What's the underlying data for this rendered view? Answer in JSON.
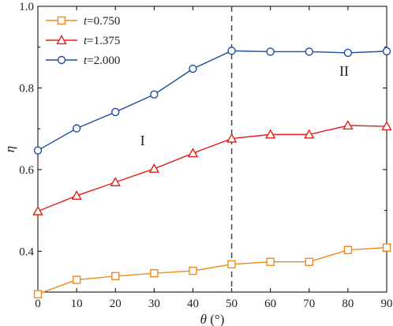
{
  "chart_data": {
    "type": "line",
    "xlabel_symbol": "θ",
    "xlabel_unit": " (°)",
    "ylabel": "η",
    "xlim": [
      0,
      90
    ],
    "ylim": [
      0.3,
      1.0
    ],
    "x_ticks": [
      0,
      10,
      20,
      30,
      40,
      50,
      60,
      70,
      80,
      90
    ],
    "y_ticks": [
      "0.4",
      "0.6",
      "0.8",
      "1.0"
    ],
    "grid": false,
    "legend_position": "top-left",
    "x": [
      0,
      10,
      20,
      30,
      40,
      50,
      60,
      70,
      80,
      90
    ],
    "series": [
      {
        "name_symbol": "t",
        "name_value": "=0.750",
        "marker": "square",
        "color": "#F08A1C",
        "values": [
          0.295,
          0.33,
          0.339,
          0.346,
          0.352,
          0.368,
          0.374,
          0.374,
          0.403,
          0.409
        ]
      },
      {
        "name_symbol": "t",
        "name_value": "=1.375",
        "marker": "triangle",
        "color": "#E0201B",
        "values": [
          0.498,
          0.536,
          0.569,
          0.602,
          0.64,
          0.676,
          0.686,
          0.686,
          0.708,
          0.706
        ]
      },
      {
        "name_symbol": "t",
        "name_value": "=2.000",
        "marker": "circle",
        "color": "#1F4E9C",
        "values": [
          0.647,
          0.701,
          0.741,
          0.784,
          0.847,
          0.891,
          0.889,
          0.889,
          0.886,
          0.89
        ]
      }
    ],
    "divider_x": 50,
    "annotations": [
      {
        "text": "I",
        "x": 27,
        "y": 0.66
      },
      {
        "text": "II",
        "x": 79,
        "y": 0.83
      }
    ]
  }
}
